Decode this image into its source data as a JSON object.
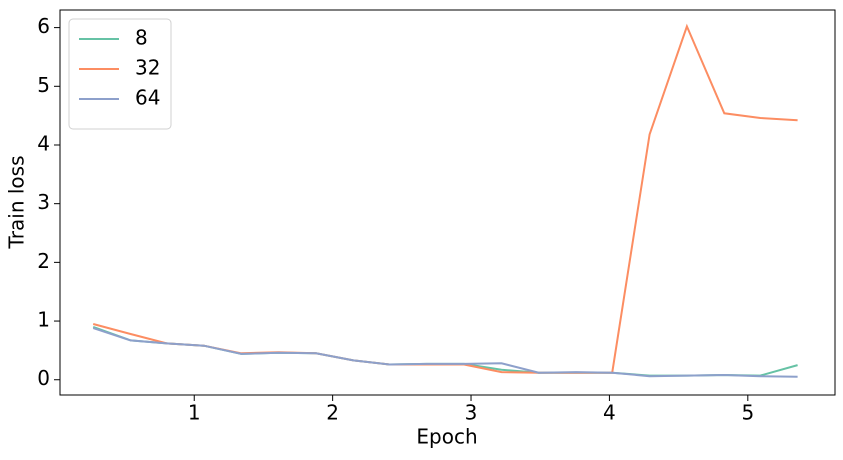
{
  "chart_data": {
    "type": "line",
    "xlabel": "Epoch",
    "ylabel": "Train loss",
    "x": [
      0.27,
      0.54,
      0.8,
      1.07,
      1.34,
      1.61,
      1.88,
      2.15,
      2.41,
      2.68,
      2.95,
      3.22,
      3.49,
      3.76,
      4.02,
      4.29,
      4.56,
      4.83,
      5.09,
      5.36
    ],
    "series": [
      {
        "name": "8",
        "color": "#66c2a5",
        "values": [
          0.9,
          0.67,
          0.62,
          0.58,
          0.44,
          0.46,
          0.45,
          0.33,
          0.26,
          0.27,
          0.27,
          0.17,
          0.12,
          0.12,
          0.12,
          0.07,
          0.07,
          0.08,
          0.07,
          0.25
        ]
      },
      {
        "name": "32",
        "color": "#fc8d62",
        "values": [
          0.95,
          0.78,
          0.62,
          0.58,
          0.45,
          0.47,
          0.45,
          0.33,
          0.26,
          0.26,
          0.26,
          0.13,
          0.12,
          0.12,
          0.12,
          4.18,
          6.02,
          4.54,
          4.46,
          4.42
        ]
      },
      {
        "name": "64",
        "color": "#8da0cb",
        "values": [
          0.88,
          0.67,
          0.62,
          0.58,
          0.44,
          0.46,
          0.45,
          0.33,
          0.26,
          0.27,
          0.27,
          0.28,
          0.12,
          0.13,
          0.12,
          0.06,
          0.07,
          0.08,
          0.06,
          0.05
        ]
      }
    ],
    "xlim": [
      0.03,
      5.63
    ],
    "ylim": [
      -0.26,
      6.3
    ],
    "xticks": [
      1,
      2,
      3,
      4,
      5
    ],
    "yticks": [
      0,
      1,
      2,
      3,
      4,
      5,
      6
    ],
    "grid": false,
    "legend": "upper-left"
  }
}
